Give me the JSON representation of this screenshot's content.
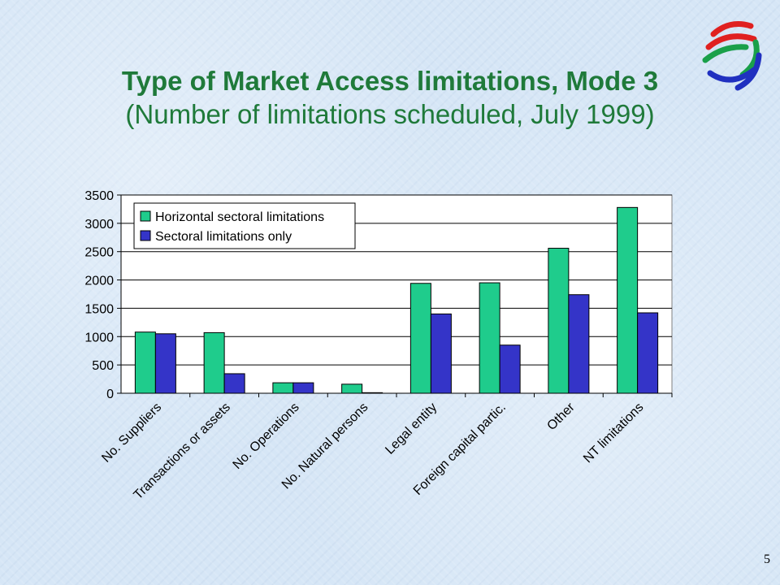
{
  "slide": {
    "title": "Type of Market Access limitations, Mode 3",
    "subtitle": "(Number of limitations scheduled, July 1999)",
    "page_number": "5"
  },
  "logo": {
    "icon": "wto-logo-icon",
    "colors": [
      "#e02020",
      "#1aa04a",
      "#2030c0"
    ]
  },
  "chart_data": {
    "type": "bar",
    "categories": [
      "No. Suppliers",
      "Transactions or assets",
      "No. Operations",
      "No. Natural persons",
      "Legal entity",
      "Foreign capital partic.",
      "Other",
      "NT limitations"
    ],
    "series": [
      {
        "name": "Horizontal sectoral limitations",
        "color": "#1fcc8c",
        "values": [
          1080,
          1070,
          185,
          160,
          1940,
          1950,
          2560,
          3280
        ]
      },
      {
        "name": "Sectoral limitations only",
        "color": "#3434c8",
        "values": [
          1050,
          345,
          185,
          10,
          1400,
          850,
          1740,
          1420
        ]
      }
    ],
    "ylim": [
      0,
      3500
    ],
    "yticks": [
      0,
      500,
      1000,
      1500,
      2000,
      2500,
      3000,
      3500
    ],
    "grid": true,
    "legend_position": "top-left",
    "title": "",
    "xlabel": "",
    "ylabel": ""
  }
}
